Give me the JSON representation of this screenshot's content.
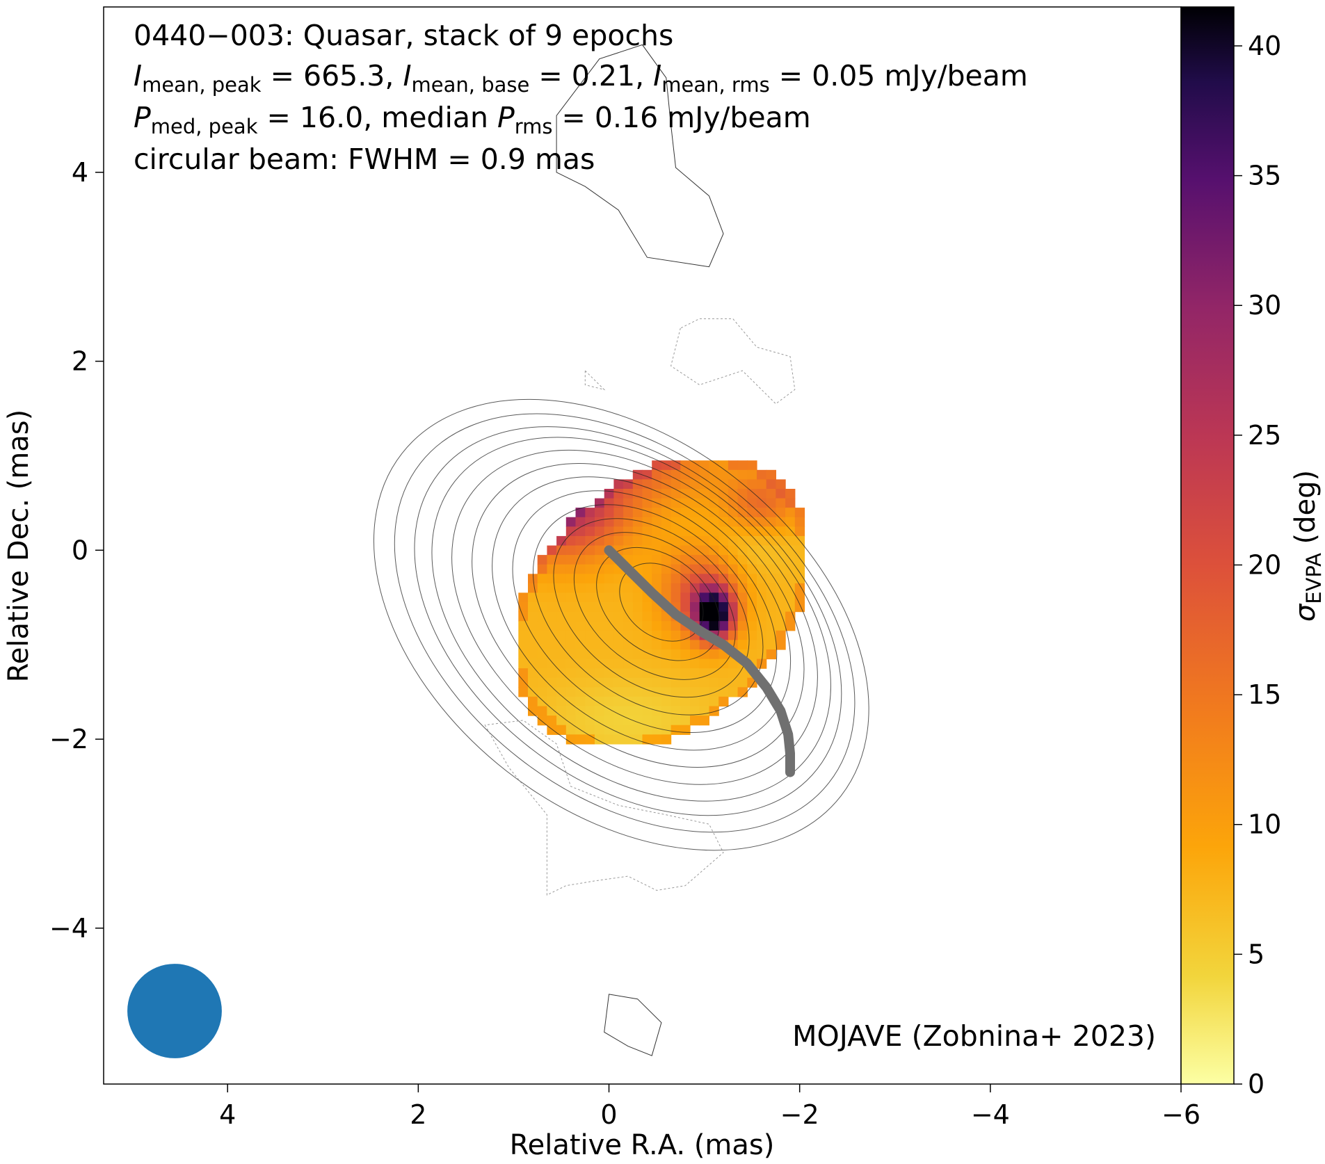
{
  "chart_data": {
    "type": "heatmap",
    "title": "0440−003: Quasar, stack of 9 epochs",
    "annotations": {
      "line2": {
        "i1": "I",
        "s1": "mean, peak",
        "v1": " = 665.3, ",
        "i2": "I",
        "s2": "mean, base",
        "v2": " = 0.21, ",
        "i3": "I",
        "s3": "mean, rms",
        "v3": " = 0.05 mJy/beam"
      },
      "line3": {
        "i1": "P",
        "s1": "med, peak",
        "v1": " = 16.0, median ",
        "i2": "P",
        "s2": "rms",
        "v2": " = 0.16 mJy/beam"
      },
      "line4": "circular beam: FWHM = 0.9 mas",
      "credit": "MOJAVE (Zobnina+ 2023)"
    },
    "xlabel": "Relative R.A. (mas)",
    "ylabel": "Relative Dec. (mas)",
    "x_axis": {
      "lim": [
        5.3,
        -6.0
      ],
      "ticks": [
        4,
        2,
        0,
        -2,
        -4,
        -6
      ],
      "tick_labels": [
        "4",
        "2",
        "0",
        "−2",
        "−4",
        "−6"
      ]
    },
    "y_axis": {
      "lim": [
        -5.65,
        5.75
      ],
      "ticks": [
        4,
        2,
        0,
        -2,
        -4
      ],
      "tick_labels": [
        "4",
        "2",
        "0",
        "−2",
        "−4"
      ]
    },
    "colorbar": {
      "label_main": "σ",
      "label_sub": "EVPA",
      "label_tail": " (deg)",
      "range": [
        0,
        41.5
      ],
      "ticks": [
        0,
        5,
        10,
        15,
        20,
        25,
        30,
        35,
        40
      ],
      "tick_labels": [
        "0",
        "5",
        "10",
        "15",
        "20",
        "25",
        "30",
        "35",
        "40"
      ],
      "colormap": "inferno_r"
    },
    "heatmap": {
      "shape": "tilted blob of sigma_EVPA values, mostly 5-12 deg, 20-30 deg in the north-east and north edge, peak ~41 deg near (-1.1, -0.7)",
      "center": [
        -0.55,
        -0.55
      ],
      "pixel_size_mas": 0.1
    },
    "ridgeline": {
      "color": "#707070",
      "points": [
        [
          0,
          0
        ],
        [
          -0.2,
          -0.2
        ],
        [
          -0.45,
          -0.45
        ],
        [
          -0.7,
          -0.68
        ],
        [
          -0.95,
          -0.85
        ],
        [
          -1.2,
          -1.0
        ],
        [
          -1.45,
          -1.2
        ],
        [
          -1.65,
          -1.45
        ],
        [
          -1.8,
          -1.7
        ],
        [
          -1.88,
          -1.95
        ],
        [
          -1.9,
          -2.15
        ],
        [
          -1.9,
          -2.35
        ]
      ]
    },
    "beam": {
      "fwhm_mas": 0.9,
      "color": "#1f77b4"
    }
  }
}
